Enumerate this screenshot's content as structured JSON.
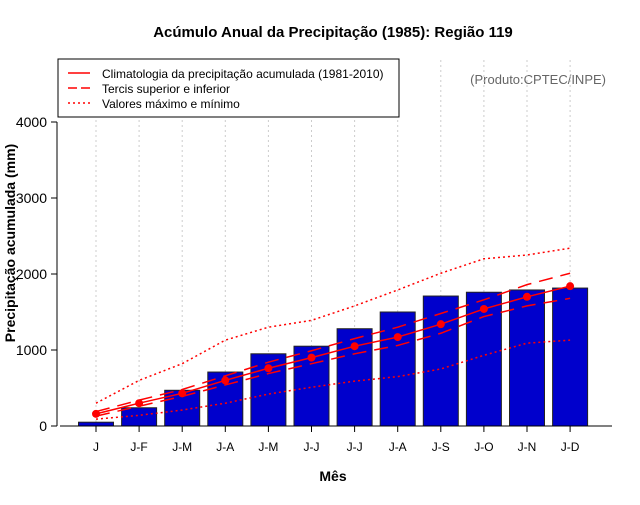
{
  "chart_data": {
    "type": "bar",
    "title": "Acúmulo Anual da Precipitação (1985): Região 119",
    "xlabel": "Mês",
    "ylabel": "Precipitação acumulada (mm)",
    "ylim": [
      0,
      4800
    ],
    "yticks": [
      0,
      1000,
      2000,
      3000,
      4000
    ],
    "credit": "(Produto:CPTEC/INPE)",
    "categories": [
      "J",
      "J-F",
      "J-M",
      "J-A",
      "J-M",
      "J-J",
      "J-J",
      "J-A",
      "J-S",
      "J-O",
      "J-N",
      "J-D"
    ],
    "values": [
      50,
      240,
      470,
      710,
      950,
      1050,
      1280,
      1500,
      1710,
      1760,
      1790,
      1815
    ],
    "bar_color": "#0000CC",
    "line_color": "#FF0000",
    "series": [
      {
        "name": "Climatologia da precipitação acumulada (1981-2010)",
        "style": "solid",
        "values": [
          160,
          300,
          430,
          600,
          760,
          900,
          1050,
          1170,
          1340,
          1540,
          1700,
          1840
        ]
      },
      {
        "name": "Tercis superior e inferior",
        "style": "dashed",
        "upper": [
          190,
          340,
          480,
          660,
          840,
          990,
          1150,
          1300,
          1480,
          1660,
          1860,
          2010
        ],
        "lower": [
          130,
          260,
          390,
          540,
          690,
          820,
          950,
          1060,
          1220,
          1440,
          1580,
          1680
        ]
      },
      {
        "name": "Valores máximo e mínimo",
        "style": "dotted",
        "max": [
          300,
          600,
          820,
          1130,
          1300,
          1390,
          1580,
          1790,
          2010,
          2200,
          2250,
          2340
        ],
        "min": [
          90,
          140,
          210,
          300,
          420,
          510,
          590,
          650,
          750,
          930,
          1090,
          1130
        ]
      }
    ],
    "legend_position": "top-left",
    "grid": "vertical dotted"
  }
}
